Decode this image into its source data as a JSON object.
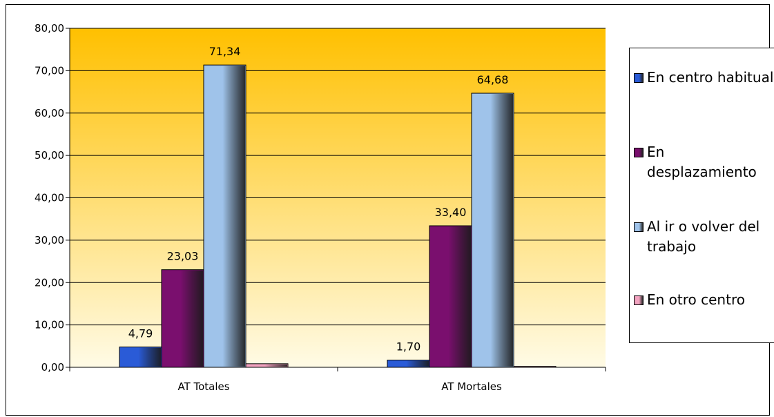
{
  "chart_data": {
    "type": "bar",
    "title": "",
    "xlabel": "",
    "ylabel": "",
    "categories": [
      "AT Totales",
      "AT Mortales"
    ],
    "series": [
      {
        "name": "En centro habitual",
        "values": [
          4.79,
          1.7
        ],
        "labels": [
          "4,79",
          "1,70"
        ],
        "color": "#2a5bd7"
      },
      {
        "name": "En desplazamiento",
        "values": [
          23.03,
          33.4
        ],
        "labels": [
          "23,03",
          "33,40"
        ],
        "color": "#7a0f6e"
      },
      {
        "name": "Al ir o volver del trabajo",
        "values": [
          71.34,
          64.68
        ],
        "labels": [
          "71,34",
          "64,68"
        ],
        "color": "#9fc3ea"
      },
      {
        "name": "En otro centro",
        "values": [
          0.84,
          0.22
        ],
        "labels": [
          "",
          ""
        ],
        "color": "#f2a3c0"
      }
    ],
    "ylim": [
      0,
      80
    ],
    "yticks": [
      0,
      10,
      20,
      30,
      40,
      50,
      60,
      70,
      80
    ],
    "ytick_labels": [
      "0,00",
      "10,00",
      "20,00",
      "30,00",
      "40,00",
      "50,00",
      "60,00",
      "70,00",
      "80,00"
    ],
    "grid": true,
    "legend_position": "right",
    "plot_background": [
      "#ffc000",
      "#fffbe6"
    ]
  }
}
